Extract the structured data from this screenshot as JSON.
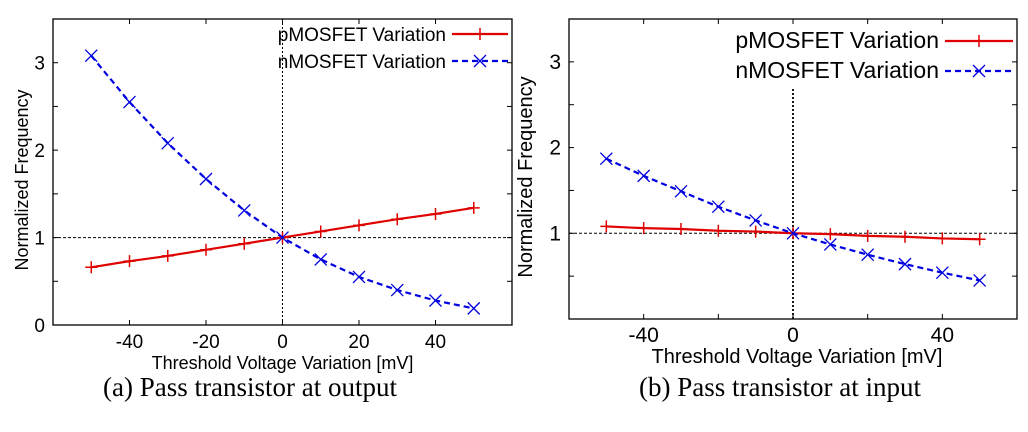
{
  "chart_data": [
    {
      "type": "line",
      "caption": "(a) Pass transistor at output",
      "xlabel": "Threshold Voltage Variation [mV]",
      "ylabel": "Normalized Frequency",
      "xlim": [
        -60,
        60
      ],
      "ylim": [
        0,
        3.5
      ],
      "xticks": [
        -40,
        -20,
        0,
        20,
        40
      ],
      "xtick_marks": [
        -40,
        -20,
        0,
        20,
        40
      ],
      "yticks": [
        0,
        1,
        2,
        3
      ],
      "ytick_marks": [
        0,
        0.5,
        1,
        1.5,
        2,
        2.5,
        3
      ],
      "grid": false,
      "reference_lines": {
        "x": 0,
        "y": 1
      },
      "legend": "top-right",
      "x": [
        -50,
        -40,
        -30,
        -20,
        -10,
        0,
        10,
        20,
        30,
        40,
        50
      ],
      "series": [
        {
          "name": "pMOSFET Variation",
          "color": "#e00000",
          "style": "solid",
          "marker": "plus",
          "values": [
            0.66,
            0.73,
            0.79,
            0.86,
            0.93,
            1.0,
            1.07,
            1.14,
            1.21,
            1.27,
            1.34
          ]
        },
        {
          "name": "nMOSFET Variation",
          "color": "#0000e0",
          "style": "dashed",
          "marker": "x",
          "values": [
            3.08,
            2.55,
            2.08,
            1.67,
            1.31,
            1.0,
            0.75,
            0.55,
            0.4,
            0.28,
            0.19
          ]
        }
      ]
    },
    {
      "type": "line",
      "caption": "(b) Pass transistor at input",
      "xlabel": "Threshold Voltage Variation [mV]",
      "ylabel": "Normalized Frequency",
      "xlim": [
        -60,
        60
      ],
      "ylim": [
        0,
        3.5
      ],
      "xticks": [
        -40,
        0,
        40
      ],
      "xtick_marks": [
        -40,
        -20,
        0,
        20,
        40
      ],
      "yticks": [
        1,
        2,
        3
      ],
      "ytick_marks": [
        0.5,
        1,
        1.5,
        2,
        2.5,
        3
      ],
      "grid": false,
      "reference_lines": {
        "x": 0,
        "y": 1
      },
      "legend": "top-right",
      "x": [
        -50,
        -40,
        -30,
        -20,
        -10,
        0,
        10,
        20,
        30,
        40,
        50
      ],
      "series": [
        {
          "name": "pMOSFET Variation",
          "color": "#e00000",
          "style": "solid",
          "marker": "plus",
          "values": [
            1.08,
            1.06,
            1.05,
            1.03,
            1.02,
            1.0,
            0.99,
            0.97,
            0.96,
            0.94,
            0.93
          ]
        },
        {
          "name": "nMOSFET Variation",
          "color": "#0000e0",
          "style": "dashed",
          "marker": "x",
          "values": [
            1.87,
            1.67,
            1.49,
            1.31,
            1.15,
            1.0,
            0.87,
            0.75,
            0.64,
            0.54,
            0.45
          ]
        }
      ]
    }
  ]
}
